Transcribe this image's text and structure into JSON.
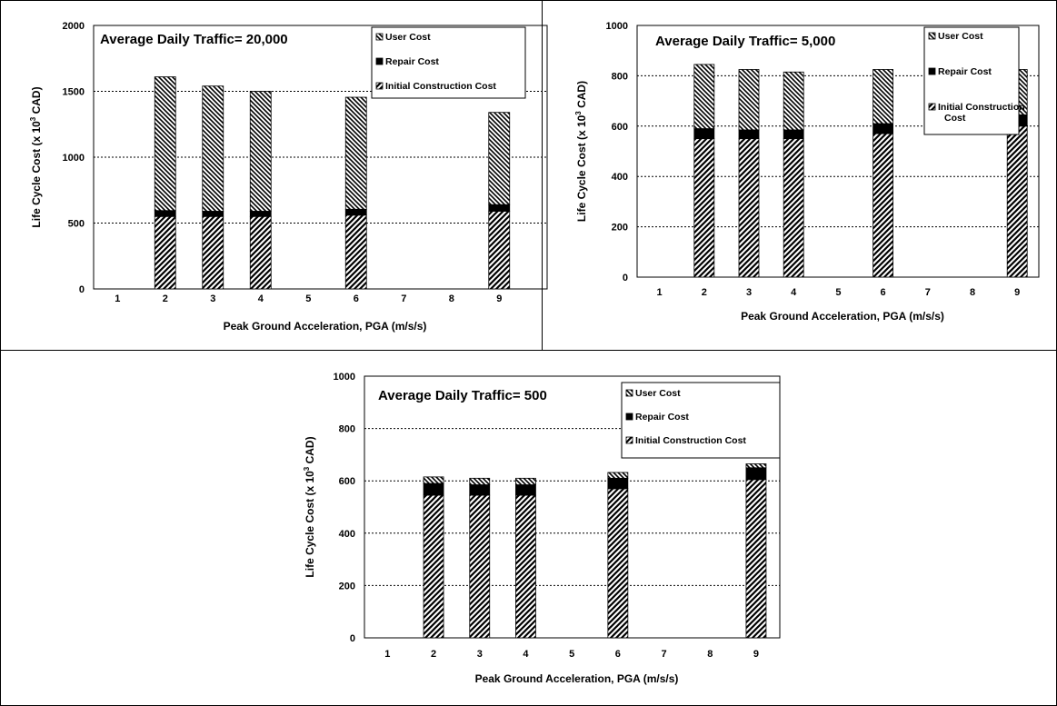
{
  "legend_colors": {
    "frame": "#000000",
    "background": "#ffffff",
    "repair": "#000000"
  },
  "chart_data": [
    {
      "type": "bar",
      "stacked": true,
      "title": "Average Daily Traffic= 20,000",
      "xlabel": "Peak Ground Acceleration, PGA (m/s/s)",
      "ylabel": {
        "main": "Life Cycle Cost (x 10",
        "sup": "3",
        "unit": " CAD)"
      },
      "categories": [
        "1",
        "2",
        "3",
        "4",
        "5",
        "6",
        "7",
        "8",
        "9"
      ],
      "ylim": [
        0,
        2000
      ],
      "yticks": [
        "0",
        "500",
        "1000",
        "1500",
        "2000"
      ],
      "grid": true,
      "legend_position": "top-right",
      "series": [
        {
          "name": "Initial Construction Cost",
          "pattern": "diagonal-up",
          "values": [
            null,
            550,
            550,
            550,
            null,
            560,
            null,
            null,
            590
          ]
        },
        {
          "name": "Repair Cost",
          "pattern": "solid",
          "values": [
            null,
            45,
            40,
            40,
            null,
            45,
            null,
            null,
            50
          ]
        },
        {
          "name": "User Cost",
          "pattern": "diagonal-down",
          "values": [
            null,
            1015,
            950,
            910,
            null,
            850,
            null,
            null,
            700
          ]
        }
      ],
      "legend_order": [
        "User Cost",
        "Repair Cost",
        "Initial Construction Cost"
      ]
    },
    {
      "type": "bar",
      "stacked": true,
      "title": "Average Daily Traffic= 5,000",
      "xlabel": "Peak Ground Acceleration, PGA (m/s/s)",
      "ylabel": {
        "main": "Life Cycle Cost (x 10",
        "sup": "3",
        "unit": " CAD)"
      },
      "categories": [
        "1",
        "2",
        "3",
        "4",
        "5",
        "6",
        "7",
        "8",
        "9"
      ],
      "ylim": [
        0,
        1000
      ],
      "yticks": [
        "0",
        "200",
        "400",
        "600",
        "800",
        "1000"
      ],
      "grid": true,
      "legend_position": "top-right",
      "series": [
        {
          "name": "Initial Construction Cost",
          "pattern": "diagonal-up",
          "values": [
            null,
            550,
            550,
            550,
            null,
            570,
            null,
            null,
            600
          ]
        },
        {
          "name": "Repair Cost",
          "pattern": "solid",
          "values": [
            null,
            40,
            35,
            35,
            null,
            40,
            null,
            null,
            45
          ]
        },
        {
          "name": "User Cost",
          "pattern": "diagonal-down",
          "values": [
            null,
            255,
            240,
            230,
            null,
            215,
            null,
            null,
            180
          ]
        }
      ],
      "legend_order": [
        "User Cost",
        "Repair Cost",
        "Initial Construction Cost"
      ],
      "legend_line_break": [
        "Initial Construction",
        "Cost"
      ]
    },
    {
      "type": "bar",
      "stacked": true,
      "title": "Average Daily Traffic= 500",
      "xlabel": "Peak Ground Acceleration, PGA (m/s/s)",
      "ylabel": {
        "main": "Life Cycle Cost (x 10",
        "sup": "3",
        "unit": " CAD)"
      },
      "categories": [
        "1",
        "2",
        "3",
        "4",
        "5",
        "6",
        "7",
        "8",
        "9"
      ],
      "ylim": [
        0,
        1000
      ],
      "yticks": [
        "0",
        "200",
        "400",
        "600",
        "800",
        "1000"
      ],
      "grid": true,
      "legend_position": "top-right",
      "series": [
        {
          "name": "Initial Construction Cost",
          "pattern": "diagonal-up",
          "values": [
            null,
            545,
            545,
            545,
            null,
            570,
            null,
            null,
            605
          ]
        },
        {
          "name": "Repair Cost",
          "pattern": "solid",
          "values": [
            null,
            45,
            40,
            40,
            null,
            40,
            null,
            null,
            45
          ]
        },
        {
          "name": "User Cost",
          "pattern": "diagonal-down",
          "values": [
            null,
            25,
            25,
            25,
            null,
            22,
            null,
            null,
            15
          ]
        }
      ],
      "legend_order": [
        "User Cost",
        "Repair Cost",
        "Initial Construction Cost"
      ]
    }
  ]
}
